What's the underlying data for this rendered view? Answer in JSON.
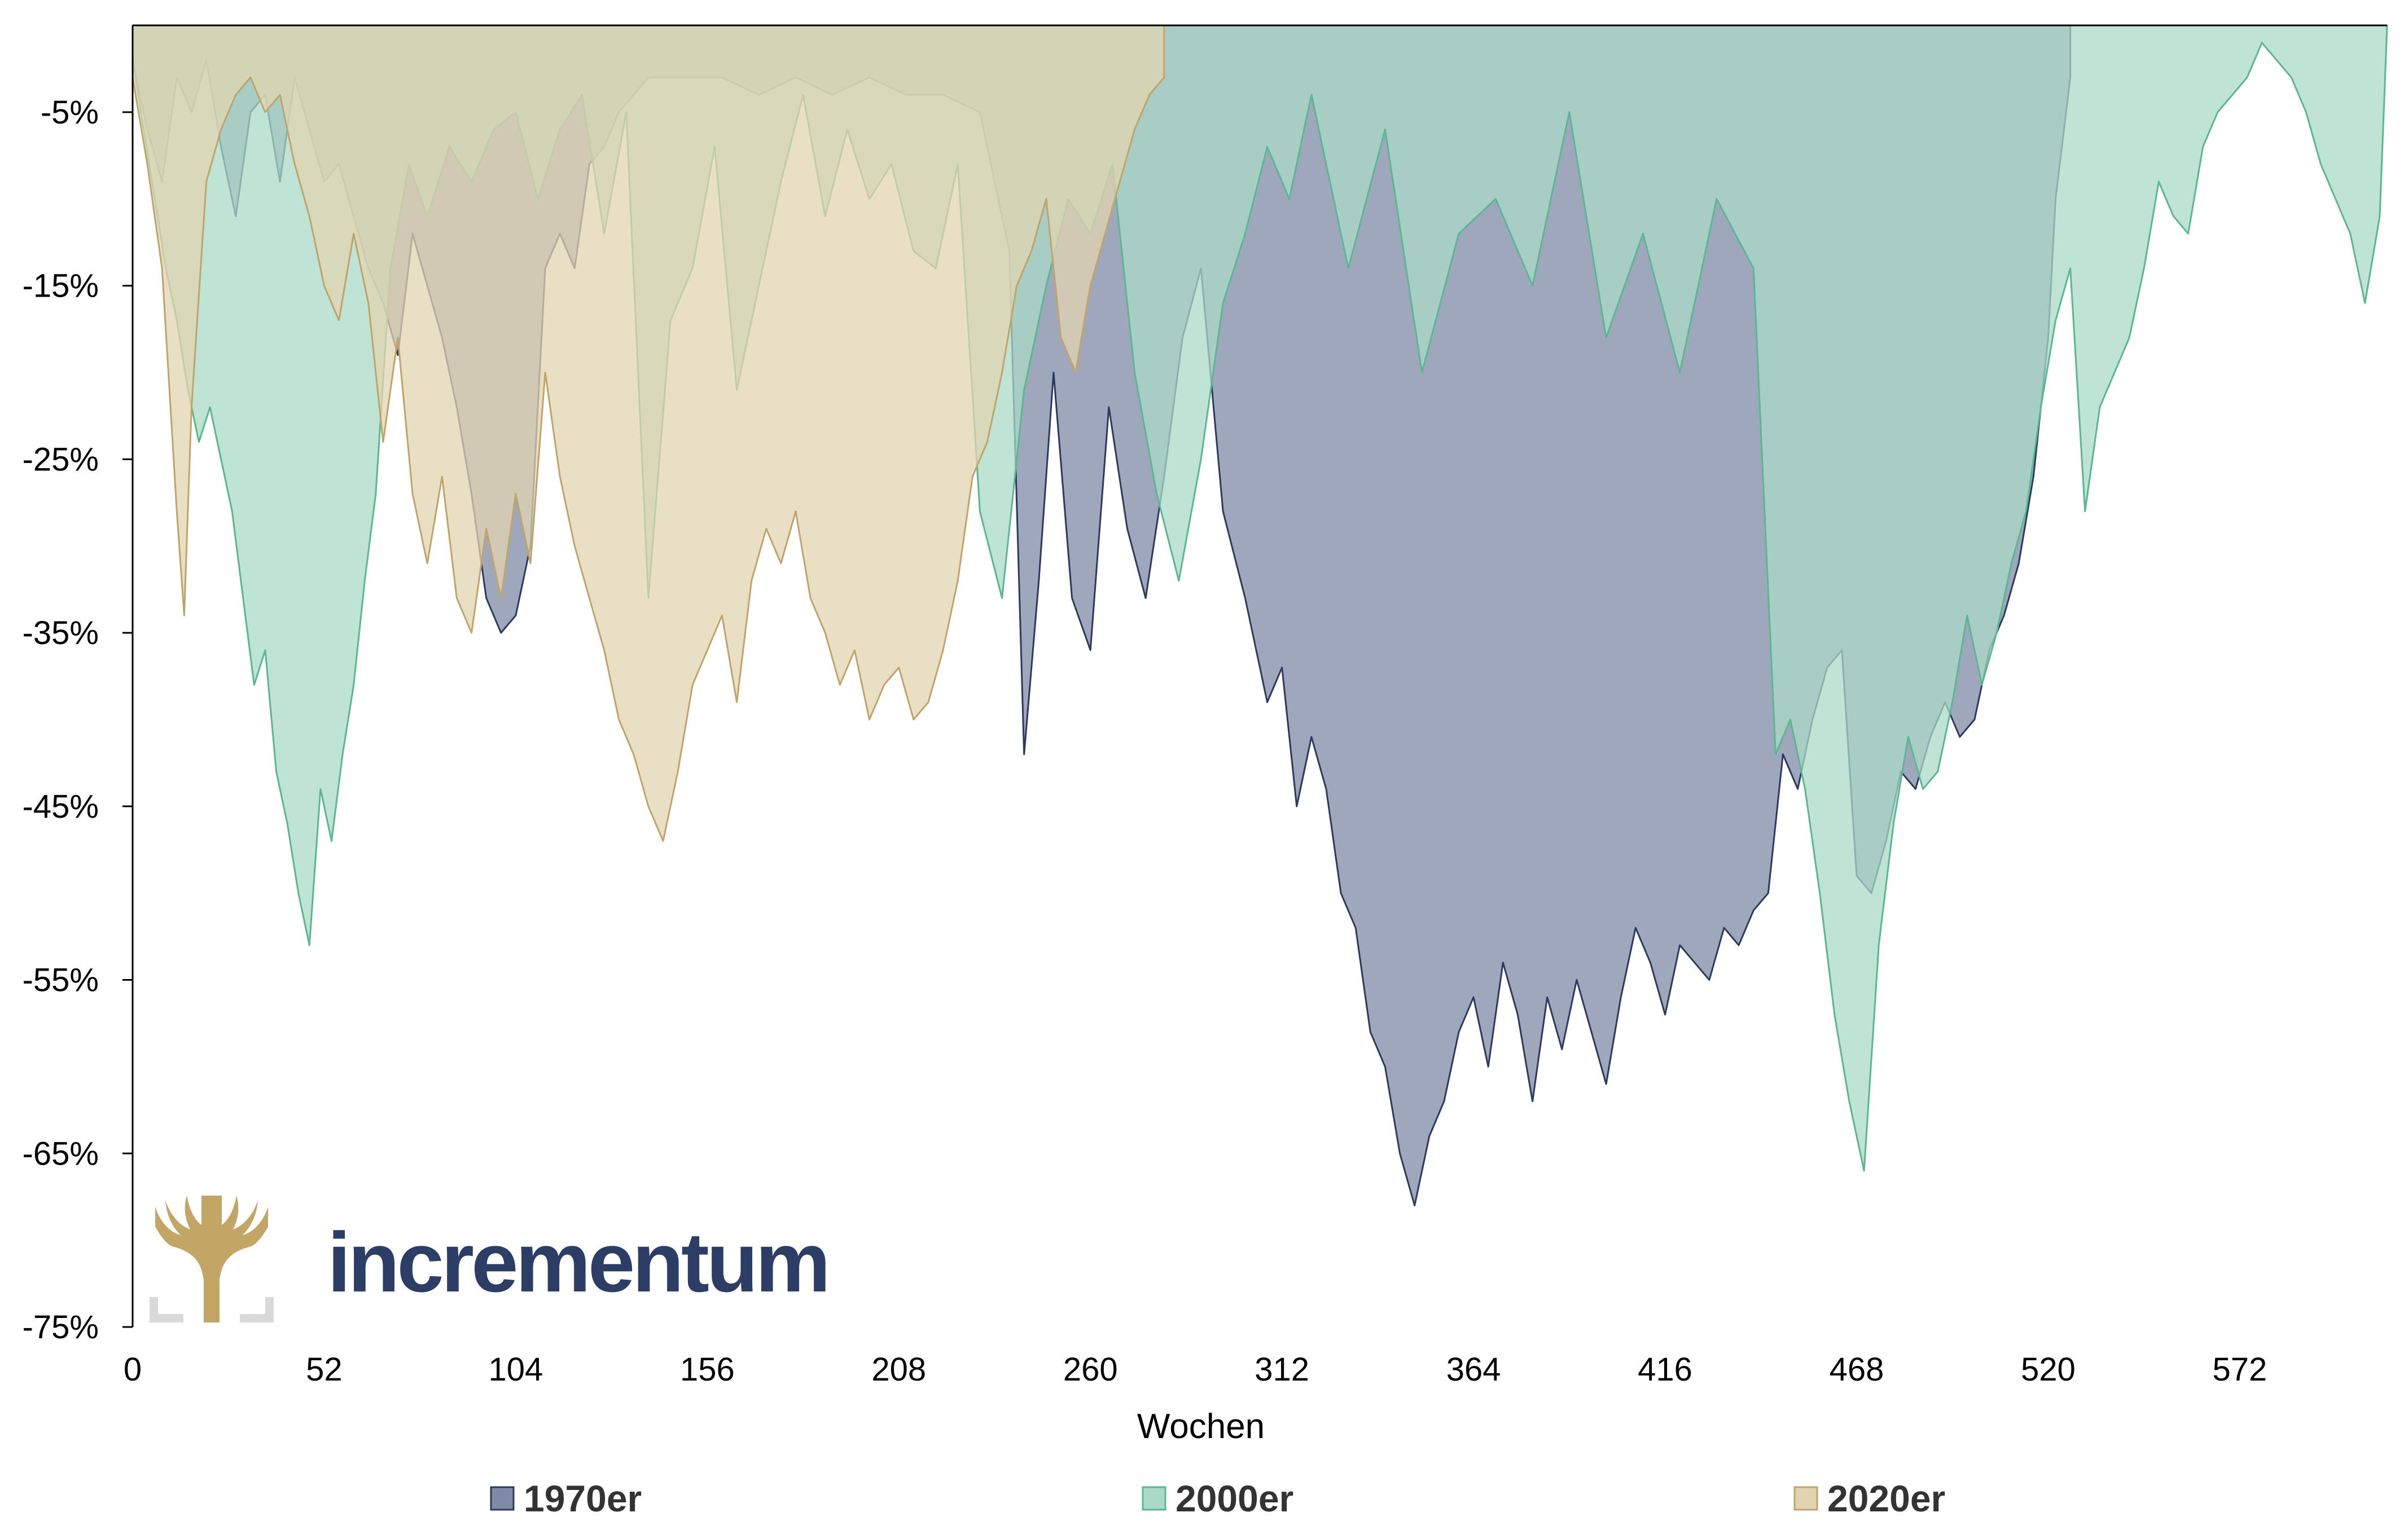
{
  "brand": {
    "name": "incrementum",
    "color": "#2c3e66",
    "gold": "#c3a565"
  },
  "chart_data": {
    "type": "area",
    "title": "",
    "xlabel": "Wochen",
    "ylabel": "",
    "xlim": [
      0,
      612
    ],
    "ylim": [
      -75,
      0
    ],
    "x_ticks": [
      0,
      52,
      104,
      156,
      208,
      260,
      312,
      364,
      416,
      468,
      520,
      572
    ],
    "y_ticks": [
      -5,
      -15,
      -25,
      -35,
      -45,
      -55,
      -65,
      -75
    ],
    "y_tick_format": "%",
    "grid": false,
    "legend_position": "bottom",
    "series": [
      {
        "name": "1970er",
        "color": "#7f8aa6",
        "line": "#2c3a5f",
        "x": [
          0,
          4,
          8,
          12,
          16,
          20,
          24,
          28,
          32,
          36,
          40,
          44,
          48,
          52,
          56,
          60,
          64,
          68,
          72,
          76,
          80,
          84,
          88,
          92,
          96,
          100,
          104,
          108,
          112,
          116,
          120,
          124,
          128,
          132,
          136,
          140,
          150,
          160,
          170,
          180,
          190,
          200,
          210,
          220,
          230,
          238,
          242,
          246,
          250,
          255,
          260,
          265,
          270,
          275,
          280,
          285,
          290,
          296,
          302,
          308,
          312,
          316,
          320,
          324,
          328,
          332,
          336,
          340,
          344,
          348,
          352,
          356,
          360,
          364,
          368,
          372,
          376,
          380,
          384,
          388,
          392,
          396,
          400,
          404,
          408,
          412,
          416,
          420,
          424,
          428,
          432,
          436,
          440,
          444,
          448,
          452,
          456,
          460,
          464,
          468,
          472,
          476,
          480,
          484,
          488,
          492,
          496,
          500,
          504,
          508,
          512,
          516,
          520,
          522,
          526
        ],
        "y": [
          -2,
          -6,
          -9,
          -3,
          -5,
          -2,
          -7,
          -11,
          -5,
          -4,
          -9,
          -3,
          -6,
          -9,
          -8,
          -11,
          -14,
          -16,
          -19,
          -12,
          -15,
          -18,
          -22,
          -27,
          -33,
          -35,
          -34,
          -30,
          -14,
          -12,
          -14,
          -8,
          -7,
          -5,
          -4,
          -3,
          -3,
          -3,
          -4,
          -3,
          -4,
          -3,
          -4,
          -4,
          -5,
          -13,
          -42,
          -32,
          -20,
          -33,
          -36,
          -22,
          -29,
          -33,
          -26,
          -18,
          -14,
          -28,
          -33,
          -39,
          -37,
          -45,
          -41,
          -44,
          -50,
          -52,
          -58,
          -60,
          -65,
          -68,
          -64,
          -62,
          -58,
          -56,
          -60,
          -54,
          -57,
          -62,
          -56,
          -59,
          -55,
          -58,
          -61,
          -56,
          -52,
          -54,
          -57,
          -53,
          -54,
          -55,
          -52,
          -53,
          -51,
          -50,
          -42,
          -44,
          -40,
          -37,
          -36,
          -49,
          -50,
          -47,
          -43,
          -44,
          -41,
          -39,
          -41,
          -40,
          -36,
          -34,
          -31,
          -26,
          -18,
          -10,
          -3
        ]
      },
      {
        "name": "2000er",
        "color": "#a9d9c7",
        "line": "#5ab891",
        "x": [
          0,
          3,
          6,
          9,
          12,
          15,
          18,
          21,
          24,
          27,
          30,
          33,
          36,
          39,
          42,
          45,
          48,
          51,
          54,
          57,
          60,
          63,
          66,
          70,
          75,
          80,
          86,
          92,
          98,
          104,
          110,
          116,
          122,
          128,
          134,
          140,
          146,
          152,
          158,
          164,
          170,
          176,
          182,
          188,
          194,
          200,
          206,
          212,
          218,
          224,
          230,
          236,
          242,
          248,
          254,
          260,
          266,
          272,
          278,
          284,
          290,
          296,
          302,
          308,
          314,
          320,
          330,
          340,
          350,
          360,
          370,
          380,
          390,
          400,
          410,
          420,
          430,
          440,
          446,
          450,
          454,
          458,
          462,
          466,
          470,
          474,
          478,
          482,
          486,
          490,
          494,
          498,
          502,
          506,
          510,
          514,
          518,
          522,
          526,
          530,
          534,
          538,
          542,
          546,
          550,
          554,
          558,
          562,
          566,
          570,
          574,
          578,
          582,
          586,
          590,
          594,
          598,
          602,
          606,
          610,
          612
        ],
        "y": [
          -2,
          -6,
          -10,
          -14,
          -17,
          -21,
          -24,
          -22,
          -25,
          -28,
          -33,
          -38,
          -36,
          -43,
          -46,
          -50,
          -53,
          -44,
          -47,
          -42,
          -38,
          -32,
          -27,
          -14,
          -8,
          -11,
          -7,
          -9,
          -6,
          -5,
          -10,
          -6,
          -4,
          -12,
          -5,
          -33,
          -17,
          -14,
          -7,
          -21,
          -15,
          -9,
          -4,
          -11,
          -6,
          -10,
          -8,
          -13,
          -14,
          -8,
          -28,
          -33,
          -21,
          -15,
          -10,
          -12,
          -8,
          -20,
          -27,
          -32,
          -25,
          -16,
          -12,
          -7,
          -10,
          -4,
          -14,
          -6,
          -20,
          -12,
          -10,
          -15,
          -5,
          -18,
          -12,
          -20,
          -10,
          -14,
          -42,
          -40,
          -44,
          -50,
          -57,
          -62,
          -66,
          -53,
          -46,
          -41,
          -44,
          -43,
          -39,
          -34,
          -38,
          -35,
          -31,
          -28,
          -22,
          -17,
          -14,
          -28,
          -22,
          -20,
          -18,
          -14,
          -9,
          -11,
          -12,
          -7,
          -5,
          -4,
          -3,
          -1,
          -2,
          -3,
          -5,
          -8,
          -10,
          -12,
          -16,
          -11,
          0
        ]
      },
      {
        "name": "2020er",
        "color": "#e2d4b0",
        "line": "#c0a46a",
        "x": [
          0,
          4,
          8,
          12,
          14,
          16,
          20,
          24,
          28,
          32,
          36,
          40,
          44,
          48,
          52,
          56,
          60,
          64,
          68,
          72,
          76,
          80,
          84,
          88,
          92,
          96,
          100,
          104,
          108,
          112,
          116,
          120,
          124,
          128,
          132,
          136,
          140,
          144,
          148,
          152,
          156,
          160,
          164,
          168,
          172,
          176,
          180,
          184,
          188,
          192,
          196,
          200,
          204,
          208,
          212,
          216,
          220,
          224,
          228,
          232,
          236,
          240,
          244,
          248,
          252,
          256,
          260,
          264,
          268,
          272,
          276,
          280
        ],
        "y": [
          -3,
          -8,
          -14,
          -28,
          -34,
          -22,
          -9,
          -6,
          -4,
          -3,
          -5,
          -4,
          -8,
          -11,
          -15,
          -17,
          -12,
          -16,
          -24,
          -18,
          -27,
          -31,
          -26,
          -33,
          -35,
          -29,
          -33,
          -27,
          -31,
          -20,
          -26,
          -30,
          -33,
          -36,
          -40,
          -42,
          -45,
          -47,
          -43,
          -38,
          -36,
          -34,
          -39,
          -32,
          -29,
          -31,
          -28,
          -33,
          -35,
          -38,
          -36,
          -40,
          -38,
          -37,
          -40,
          -39,
          -36,
          -32,
          -26,
          -24,
          -20,
          -15,
          -13,
          -10,
          -18,
          -20,
          -15,
          -12,
          -9,
          -6,
          -4,
          -3
        ]
      }
    ]
  }
}
